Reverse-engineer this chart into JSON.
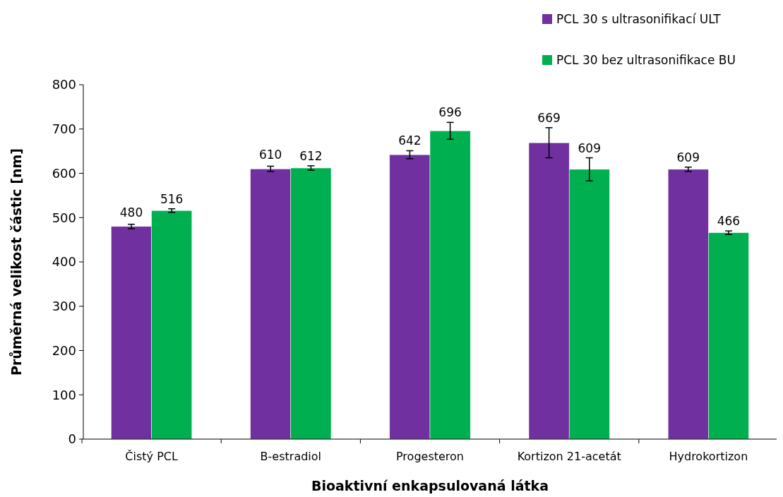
{
  "chart_data": {
    "type": "bar",
    "xlabel": "Bioaktivní enkapsulovaná látka",
    "ylabel": "Průměrná velikost částic [nm]",
    "categories": [
      "Čistý PCL",
      "B-estradiol",
      "Progesteron",
      "Kortizon 21-acetát",
      "Hydrokortizon"
    ],
    "series": [
      {
        "name": "PCL 30 s ultrasonifikací ULT",
        "color": "#7030a0",
        "values": [
          480,
          610,
          642,
          669,
          609
        ],
        "errors": [
          5,
          6,
          9,
          34,
          5
        ]
      },
      {
        "name": "PCL 30 bez ultrasonifikace BU",
        "color": "#00b050",
        "values": [
          516,
          612,
          696,
          609,
          466
        ],
        "errors": [
          4,
          5,
          19,
          26,
          4
        ]
      }
    ],
    "ylim": [
      0,
      800
    ],
    "yticks": [
      0,
      100,
      200,
      300,
      400,
      500,
      600,
      700,
      800
    ],
    "data_labels": true,
    "legend": "top right"
  }
}
